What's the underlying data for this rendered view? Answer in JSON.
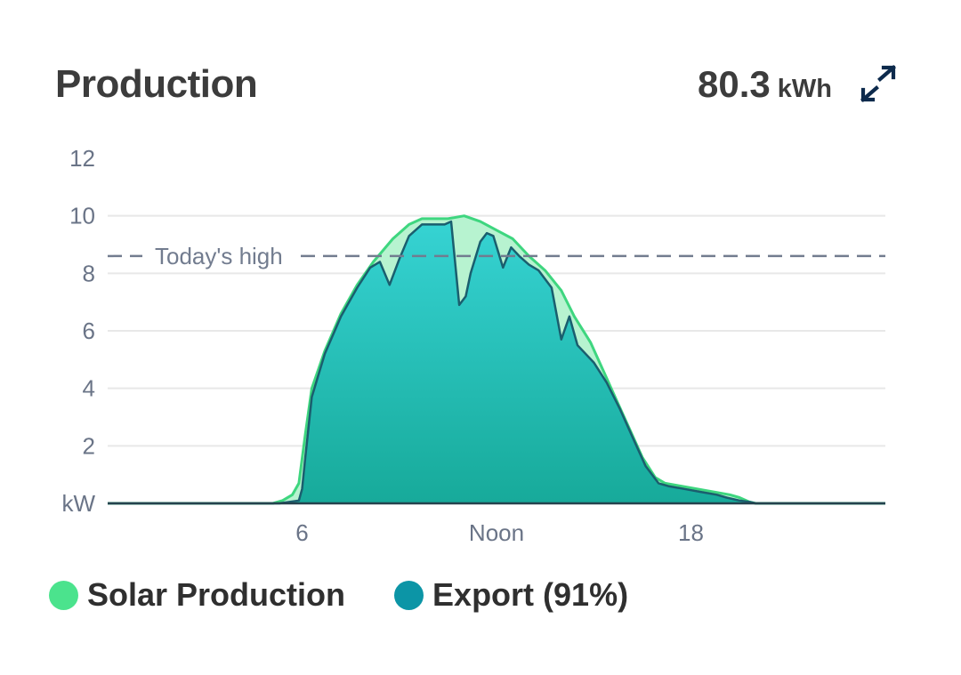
{
  "header": {
    "title": "Production",
    "total_value": "80.3",
    "total_unit": "kWh",
    "expand_icon": "expand-arrows-icon"
  },
  "colors": {
    "production_fill": "#b7f3d0",
    "production_line": "#3ed67f",
    "export_fill_top": "#36d3d3",
    "export_fill_bottom": "#17aa9a",
    "export_line": "#1a5e6e",
    "grid": "#e8e8e8",
    "axis_text": "#6a7487",
    "reference_line": "#727c8f"
  },
  "legend": [
    {
      "label": "Solar Production",
      "color": "#4be38d"
    },
    {
      "label": "Export (91%)",
      "color": "#0c95a6"
    }
  ],
  "chart_data": {
    "type": "area",
    "title": "Production",
    "xlabel": "",
    "ylabel": "kW",
    "xlim": [
      0,
      24
    ],
    "ylim": [
      0,
      12
    ],
    "x_ticks": [
      {
        "x": 6,
        "label": "6"
      },
      {
        "x": 12,
        "label": "Noon"
      },
      {
        "x": 18,
        "label": "18"
      }
    ],
    "y_ticks": [
      {
        "y": 0,
        "label": "kW"
      },
      {
        "y": 2,
        "label": "2"
      },
      {
        "y": 4,
        "label": "4"
      },
      {
        "y": 6,
        "label": "6"
      },
      {
        "y": 8,
        "label": "8"
      },
      {
        "y": 10,
        "label": "10"
      },
      {
        "y": 12,
        "label": "12"
      }
    ],
    "grid": true,
    "reference_line": {
      "y": 8.6,
      "label": "Today's high"
    },
    "series": [
      {
        "name": "Solar Production",
        "points": [
          [
            0,
            0
          ],
          [
            5.1,
            0
          ],
          [
            5.4,
            0.1
          ],
          [
            5.7,
            0.3
          ],
          [
            5.9,
            0.7
          ],
          [
            6.1,
            2.4
          ],
          [
            6.3,
            4.0
          ],
          [
            6.7,
            5.3
          ],
          [
            7.2,
            6.6
          ],
          [
            7.7,
            7.6
          ],
          [
            8.2,
            8.4
          ],
          [
            8.8,
            9.2
          ],
          [
            9.3,
            9.7
          ],
          [
            9.7,
            9.9
          ],
          [
            10.1,
            9.9
          ],
          [
            10.5,
            9.9
          ],
          [
            11.0,
            10.0
          ],
          [
            11.5,
            9.8
          ],
          [
            12.0,
            9.5
          ],
          [
            12.5,
            9.2
          ],
          [
            13.0,
            8.6
          ],
          [
            13.5,
            8.1
          ],
          [
            14.0,
            7.4
          ],
          [
            14.4,
            6.5
          ],
          [
            14.9,
            5.6
          ],
          [
            15.3,
            4.6
          ],
          [
            15.7,
            3.6
          ],
          [
            16.1,
            2.6
          ],
          [
            16.5,
            1.6
          ],
          [
            16.9,
            0.9
          ],
          [
            17.2,
            0.7
          ],
          [
            17.7,
            0.6
          ],
          [
            18.2,
            0.5
          ],
          [
            18.7,
            0.4
          ],
          [
            19.2,
            0.3
          ],
          [
            19.5,
            0.2
          ],
          [
            19.8,
            0.05
          ],
          [
            20.0,
            0
          ],
          [
            24,
            0
          ]
        ]
      },
      {
        "name": "Export (91%)",
        "points": [
          [
            0,
            0
          ],
          [
            5.3,
            0
          ],
          [
            5.9,
            0.1
          ],
          [
            6.0,
            0.5
          ],
          [
            6.1,
            1.6
          ],
          [
            6.3,
            3.7
          ],
          [
            6.7,
            5.2
          ],
          [
            7.2,
            6.5
          ],
          [
            7.7,
            7.5
          ],
          [
            8.1,
            8.2
          ],
          [
            8.4,
            8.4
          ],
          [
            8.7,
            7.6
          ],
          [
            9.0,
            8.5
          ],
          [
            9.3,
            9.3
          ],
          [
            9.7,
            9.7
          ],
          [
            10.1,
            9.7
          ],
          [
            10.4,
            9.7
          ],
          [
            10.6,
            9.8
          ],
          [
            10.85,
            6.9
          ],
          [
            11.05,
            7.2
          ],
          [
            11.2,
            8.0
          ],
          [
            11.5,
            9.1
          ],
          [
            11.7,
            9.4
          ],
          [
            11.9,
            9.3
          ],
          [
            12.2,
            8.2
          ],
          [
            12.45,
            8.9
          ],
          [
            12.7,
            8.6
          ],
          [
            13.0,
            8.3
          ],
          [
            13.3,
            8.1
          ],
          [
            13.7,
            7.5
          ],
          [
            14.0,
            5.7
          ],
          [
            14.25,
            6.5
          ],
          [
            14.5,
            5.5
          ],
          [
            15.0,
            4.9
          ],
          [
            15.4,
            4.2
          ],
          [
            15.8,
            3.3
          ],
          [
            16.2,
            2.3
          ],
          [
            16.6,
            1.3
          ],
          [
            17.0,
            0.7
          ],
          [
            17.3,
            0.6
          ],
          [
            17.8,
            0.5
          ],
          [
            18.3,
            0.4
          ],
          [
            18.8,
            0.3
          ],
          [
            19.1,
            0.2
          ],
          [
            19.5,
            0.1
          ],
          [
            19.8,
            0.05
          ],
          [
            20.0,
            0
          ],
          [
            24,
            0
          ]
        ]
      }
    ]
  }
}
